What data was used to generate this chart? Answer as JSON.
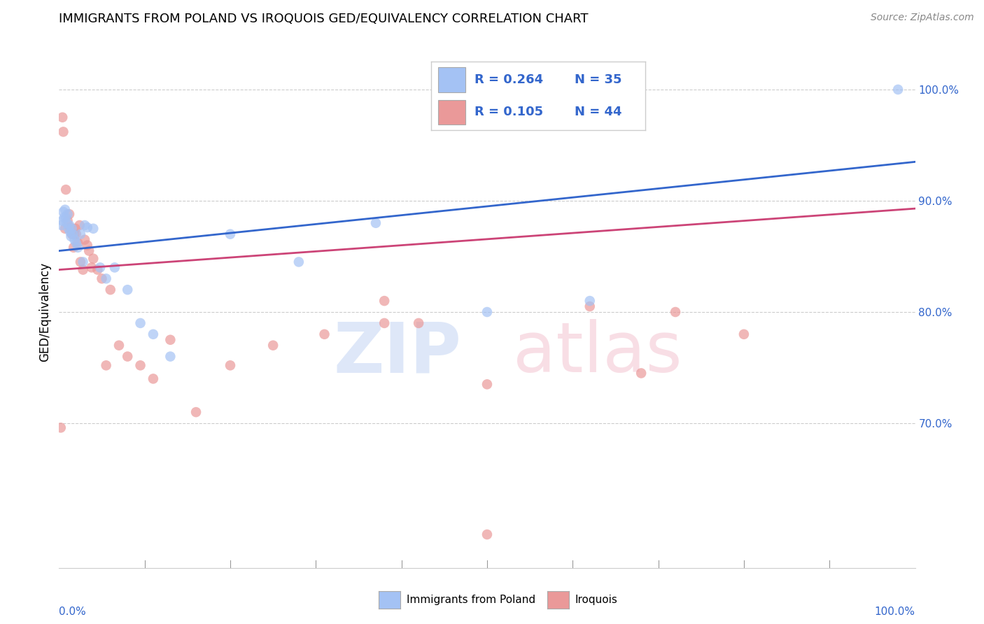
{
  "title": "IMMIGRANTS FROM POLAND VS IROQUOIS GED/EQUIVALENCY CORRELATION CHART",
  "source": "Source: ZipAtlas.com",
  "ylabel": "GED/Equivalency",
  "legend_label_blue": "Immigrants from Poland",
  "legend_label_pink": "Iroquois",
  "blue_color": "#a4c2f4",
  "pink_color": "#ea9999",
  "blue_line_color": "#3366cc",
  "pink_line_color": "#cc4477",
  "xlim": [
    0.0,
    1.0
  ],
  "ylim": [
    0.57,
    1.03
  ],
  "yticks": [
    0.7,
    0.8,
    0.9,
    1.0
  ],
  "ytick_labels": [
    "70.0%",
    "80.0%",
    "90.0%",
    "100.0%"
  ],
  "blue_scatter_x": [
    0.003,
    0.004,
    0.005,
    0.006,
    0.007,
    0.008,
    0.009,
    0.01,
    0.011,
    0.012,
    0.013,
    0.014,
    0.015,
    0.016,
    0.018,
    0.02,
    0.022,
    0.025,
    0.028,
    0.03,
    0.033,
    0.04,
    0.048,
    0.055,
    0.065,
    0.08,
    0.095,
    0.11,
    0.13,
    0.2,
    0.28,
    0.37,
    0.5,
    0.62,
    0.98
  ],
  "blue_scatter_y": [
    0.878,
    0.882,
    0.89,
    0.885,
    0.892,
    0.885,
    0.88,
    0.888,
    0.875,
    0.878,
    0.872,
    0.868,
    0.875,
    0.87,
    0.865,
    0.862,
    0.858,
    0.87,
    0.845,
    0.878,
    0.876,
    0.875,
    0.84,
    0.83,
    0.84,
    0.82,
    0.79,
    0.78,
    0.76,
    0.87,
    0.845,
    0.88,
    0.8,
    0.81,
    1.0
  ],
  "pink_scatter_x": [
    0.002,
    0.004,
    0.005,
    0.007,
    0.008,
    0.01,
    0.012,
    0.013,
    0.015,
    0.017,
    0.018,
    0.019,
    0.02,
    0.022,
    0.024,
    0.025,
    0.028,
    0.03,
    0.033,
    0.035,
    0.038,
    0.04,
    0.045,
    0.05,
    0.055,
    0.06,
    0.07,
    0.08,
    0.095,
    0.11,
    0.13,
    0.16,
    0.2,
    0.25,
    0.31,
    0.38,
    0.42,
    0.5,
    0.62,
    0.68,
    0.72,
    0.8,
    0.5,
    0.38
  ],
  "pink_scatter_y": [
    0.696,
    0.975,
    0.962,
    0.875,
    0.91,
    0.882,
    0.888,
    0.876,
    0.87,
    0.858,
    0.87,
    0.875,
    0.87,
    0.862,
    0.878,
    0.845,
    0.838,
    0.865,
    0.86,
    0.855,
    0.84,
    0.848,
    0.838,
    0.83,
    0.752,
    0.82,
    0.77,
    0.76,
    0.752,
    0.74,
    0.775,
    0.71,
    0.752,
    0.77,
    0.78,
    0.81,
    0.79,
    0.6,
    0.805,
    0.745,
    0.8,
    0.78,
    0.735,
    0.79
  ],
  "blue_line_x0": 0.0,
  "blue_line_y0": 0.855,
  "blue_line_x1": 1.0,
  "blue_line_y1": 0.935,
  "pink_line_x0": 0.0,
  "pink_line_y0": 0.838,
  "pink_line_x1": 1.0,
  "pink_line_y1": 0.893
}
